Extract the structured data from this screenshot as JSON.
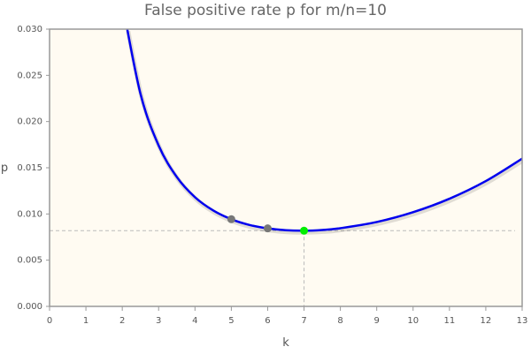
{
  "chart_data": {
    "type": "line",
    "title": "False positive rate p for m/n=10",
    "xlabel": "k",
    "ylabel": "p",
    "xlim": [
      0,
      13
    ],
    "ylim": [
      0,
      0.03
    ],
    "xticks": [
      "0",
      "1",
      "2",
      "3",
      "4",
      "5",
      "6",
      "7",
      "8",
      "9",
      "10",
      "11",
      "12",
      "13"
    ],
    "yticks": [
      "0.000",
      "0.005",
      "0.010",
      "0.015",
      "0.020",
      "0.025",
      "0.030"
    ],
    "grid": false,
    "series": [
      {
        "color": "#0000ee",
        "x": [
          2,
          2.5,
          3,
          3.5,
          4,
          4.5,
          5,
          5.5,
          6,
          6.5,
          7,
          7.5,
          8,
          9,
          10,
          11,
          12,
          13
        ],
        "y": [
          0.03286,
          0.02302,
          0.01741,
          0.014,
          0.01181,
          0.01038,
          0.00943,
          0.00881,
          0.00844,
          0.00824,
          0.00819,
          0.00827,
          0.00846,
          0.00913,
          0.01019,
          0.01165,
          0.01356,
          0.01599
        ]
      }
    ],
    "points": [
      {
        "x": 5,
        "y": 0.00943,
        "color": "#777777"
      },
      {
        "x": 6,
        "y": 0.00844,
        "color": "#777777"
      },
      {
        "x": 7,
        "y": 0.00819,
        "color": "#00ee00",
        "highlight": true
      }
    ],
    "guide_lines": {
      "x": 7,
      "y": 0.00819
    },
    "background": "#fffbf2"
  }
}
